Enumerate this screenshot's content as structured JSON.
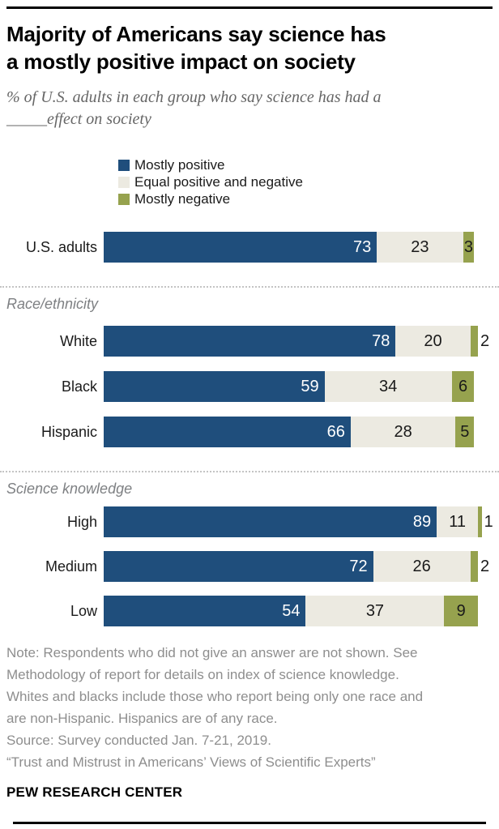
{
  "title_lines": [
    "Majority of Americans say science has",
    "a mostly positive impact on society"
  ],
  "subtitle_lines": [
    "% of U.S. adults in each group who say science has had a",
    "_____effect on society"
  ],
  "legend": {
    "items": [
      {
        "label": "Mostly positive",
        "color": "#1F4E7C"
      },
      {
        "label": "Equal positive and negative",
        "color": "#ECEAE1"
      },
      {
        "label": "Mostly negative",
        "color": "#96A24E"
      }
    ]
  },
  "chart_data": {
    "type": "bar",
    "orientation": "horizontal",
    "stacked": true,
    "xlim": [
      0,
      100
    ],
    "unit": "percent",
    "series_names": [
      "Mostly positive",
      "Equal positive and negative",
      "Mostly negative"
    ],
    "colors": {
      "mostly_positive": "#1F4E7C",
      "equal_positive_and_negative": "#ECEAE1",
      "mostly_negative": "#96A24E"
    },
    "groups": [
      {
        "heading": "",
        "rows": [
          {
            "label": "U.S. adults",
            "values": [
              73,
              23,
              3
            ]
          }
        ]
      },
      {
        "heading": "Race/ethnicity",
        "rows": [
          {
            "label": "White",
            "values": [
              78,
              20,
              2
            ]
          },
          {
            "label": "Black",
            "values": [
              59,
              34,
              6
            ]
          },
          {
            "label": "Hispanic",
            "values": [
              66,
              28,
              5
            ]
          }
        ]
      },
      {
        "heading": "Science knowledge",
        "rows": [
          {
            "label": "High",
            "values": [
              89,
              11,
              1
            ]
          },
          {
            "label": "Medium",
            "values": [
              72,
              26,
              2
            ]
          },
          {
            "label": "Low",
            "values": [
              54,
              37,
              9
            ]
          }
        ]
      }
    ]
  },
  "notes_lines": [
    "Note: Respondents who did not give an answer are not shown. See",
    "Methodology of report for details on index of science knowledge.",
    "Whites and blacks include those who report being only one race and",
    "are non-Hispanic. Hispanics are of any race.",
    "Source: Survey conducted Jan. 7-21, 2019.",
    "“Trust and Mistrust in Americans’ Views of Scientific Experts”"
  ],
  "brand": "PEW RESEARCH CENTER"
}
